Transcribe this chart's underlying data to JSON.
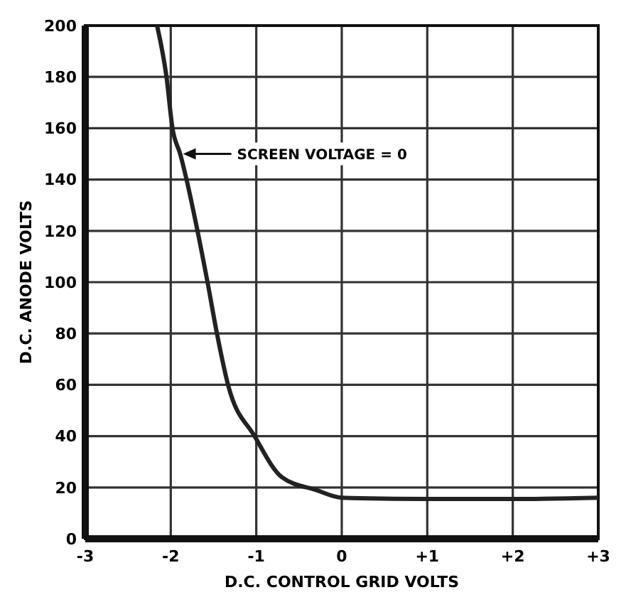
{
  "chart_data": {
    "type": "line",
    "xlabel": "D.C. CONTROL GRID VOLTS",
    "ylabel": "D.C. ANODE VOLTS",
    "xlim": [
      -3,
      3
    ],
    "ylim": [
      0,
      200
    ],
    "xticks": [
      -3,
      -2,
      -1,
      0,
      {
        "value": 1,
        "label": "+1"
      },
      {
        "value": 2,
        "label": "+2"
      },
      {
        "value": 3,
        "label": "+3"
      }
    ],
    "yticks": [
      0,
      20,
      40,
      60,
      80,
      100,
      120,
      140,
      160,
      180,
      200
    ],
    "grid": true,
    "marker": "none",
    "line_style": "solid",
    "series": [
      {
        "color": "#222222",
        "x": [
          -2.16,
          -2.05,
          -1.98,
          -1.89,
          -1.57,
          -1.46,
          -1.33,
          -1.02,
          -0.7,
          -0.3,
          0,
          1,
          2,
          3
        ],
        "values": [
          200,
          180,
          160,
          150,
          100,
          80,
          60,
          40,
          24,
          19,
          16,
          15.5,
          15.5,
          16
        ]
      }
    ],
    "annotations": [
      {
        "text": "SCREEN VOLTAGE = 0",
        "x": -1.89,
        "y": 150
      }
    ]
  }
}
